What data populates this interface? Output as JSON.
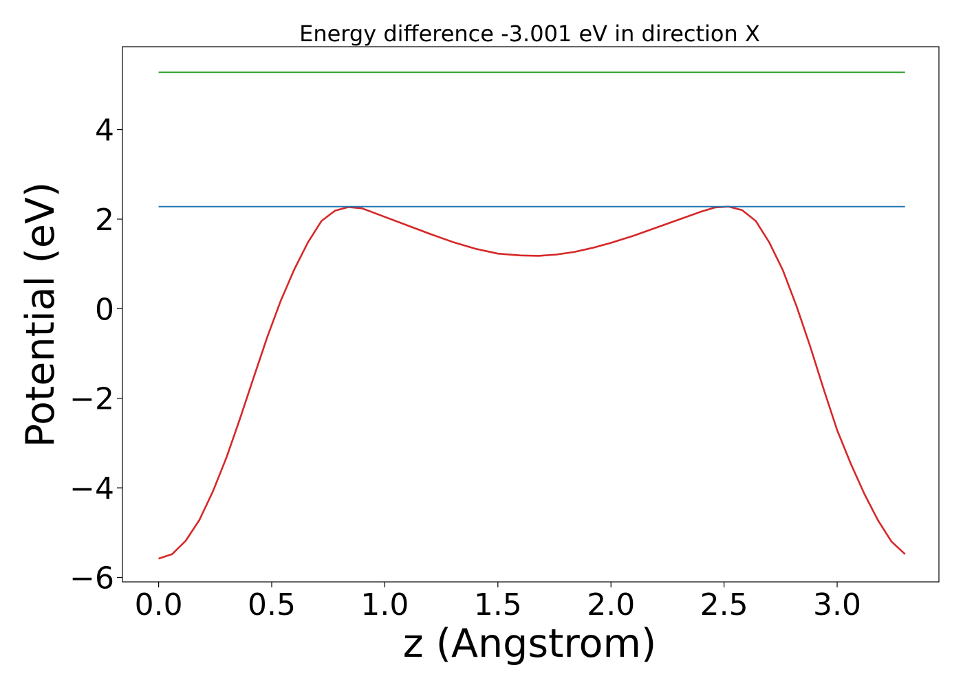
{
  "chart_data": {
    "type": "line",
    "title": "Energy difference -3.001 eV in direction X",
    "xlabel": "z (Angstrom)",
    "ylabel": "Potential (eV)",
    "xlim": [
      -0.16,
      3.45
    ],
    "ylim": [
      -6.1,
      5.85
    ],
    "xticks": [
      0.0,
      0.5,
      1.0,
      1.5,
      2.0,
      2.5,
      3.0
    ],
    "xtick_labels": [
      "0.0",
      "0.5",
      "1.0",
      "1.5",
      "2.0",
      "2.5",
      "3.0"
    ],
    "yticks": [
      -6,
      -4,
      -2,
      0,
      2,
      4
    ],
    "ytick_labels": [
      "−6",
      "−4",
      "−2",
      "0",
      "2",
      "4"
    ],
    "grid": false,
    "legend": false,
    "series": [
      {
        "color": "#d62728",
        "x": [
          0.0,
          0.06,
          0.12,
          0.18,
          0.24,
          0.3,
          0.36,
          0.42,
          0.48,
          0.54,
          0.6,
          0.66,
          0.72,
          0.78,
          0.84,
          0.9,
          1.0,
          1.1,
          1.2,
          1.3,
          1.4,
          1.5,
          1.6,
          1.68,
          1.76,
          1.84,
          1.92,
          2.0,
          2.1,
          2.2,
          2.3,
          2.4,
          2.46,
          2.52,
          2.58,
          2.64,
          2.7,
          2.76,
          2.82,
          2.88,
          2.94,
          3.0,
          3.06,
          3.12,
          3.18,
          3.24,
          3.3
        ],
        "y": [
          -5.58,
          -5.48,
          -5.18,
          -4.72,
          -4.08,
          -3.32,
          -2.45,
          -1.54,
          -0.64,
          0.18,
          0.88,
          1.48,
          1.96,
          2.19,
          2.27,
          2.24,
          2.05,
          1.86,
          1.67,
          1.49,
          1.34,
          1.23,
          1.19,
          1.18,
          1.21,
          1.27,
          1.36,
          1.47,
          1.63,
          1.81,
          1.99,
          2.17,
          2.26,
          2.28,
          2.2,
          1.96,
          1.48,
          0.86,
          0.06,
          -0.83,
          -1.79,
          -2.71,
          -3.46,
          -4.13,
          -4.72,
          -5.2,
          -5.48
        ]
      },
      {
        "color": "#1f77b4",
        "x": [
          0.0,
          3.3
        ],
        "y": [
          2.28,
          2.28
        ]
      },
      {
        "color": "#2ca02c",
        "x": [
          0.0,
          3.3
        ],
        "y": [
          5.28,
          5.28
        ]
      }
    ]
  }
}
